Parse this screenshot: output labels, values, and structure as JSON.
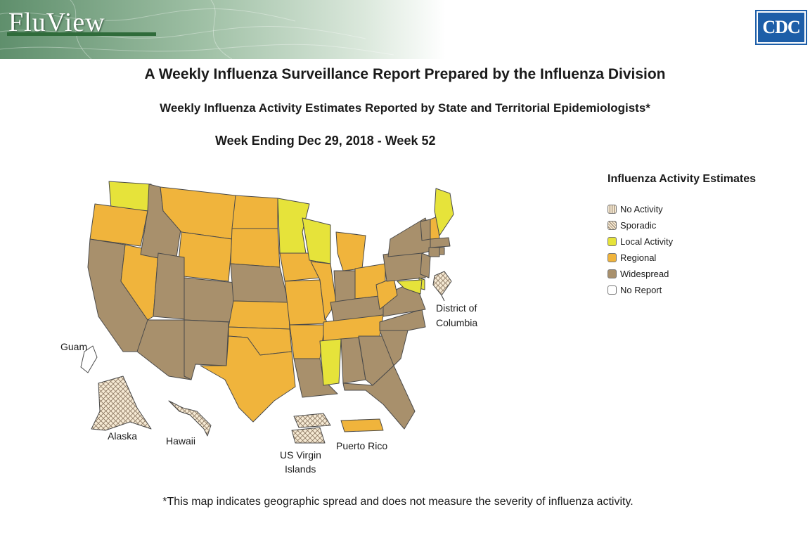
{
  "header": {
    "logo": "FluView",
    "agency_logo": "CDC",
    "title": "A Weekly Influenza Surveillance Report Prepared by the Influenza Division",
    "subtitle": "Weekly Influenza Activity Estimates Reported by State and Territorial Epidemiologists*",
    "week": "Week Ending Dec 29, 2018 - Week 52"
  },
  "legend": {
    "title": "Influenza Activity Estimates",
    "items": [
      {
        "label": "No Activity",
        "color": "#f6ead4",
        "pattern": "vertical-lines"
      },
      {
        "label": "Sporadic",
        "color": "#f6ead4",
        "pattern": "crosshatch"
      },
      {
        "label": "Local Activity",
        "color": "#e6e33a"
      },
      {
        "label": "Regional",
        "color": "#f0b43c"
      },
      {
        "label": "Widespread",
        "color": "#a8906c"
      },
      {
        "label": "No Report",
        "color": "#ffffff"
      }
    ]
  },
  "territory_labels": {
    "dc": [
      "District of",
      "Columbia"
    ],
    "guam": "Guam",
    "alaska": "Alaska",
    "hawaii": "Hawaii",
    "usvi": [
      "US Virgin",
      "Islands"
    ],
    "puerto_rico": "Puerto Rico"
  },
  "footnote": "*This map indicates geographic spread and does not measure the severity of influenza activity.",
  "map_data": {
    "WA": "Local Activity",
    "OR": "Regional",
    "CA": "Widespread",
    "NV": "Regional",
    "ID": "Widespread",
    "MT": "Regional",
    "WY": "Regional",
    "UT": "Widespread",
    "AZ": "Widespread",
    "CO": "Widespread",
    "NM": "Widespread",
    "ND": "Regional",
    "SD": "Regional",
    "NE": "Widespread",
    "KS": "Regional",
    "OK": "Regional",
    "TX": "Regional",
    "MN": "Local Activity",
    "IA": "Regional",
    "MO": "Regional",
    "AR": "Regional",
    "LA": "Widespread",
    "WI": "Local Activity",
    "IL": "Regional",
    "MI": "Regional",
    "IN": "Widespread",
    "OH": "Regional",
    "KY": "Widespread",
    "TN": "Regional",
    "MS": "Local Activity",
    "AL": "Widespread",
    "GA": "Widespread",
    "FL": "Widespread",
    "SC": "Widespread",
    "NC": "Widespread",
    "VA": "Widespread",
    "WV": "Regional",
    "PA": "Widespread",
    "NY": "Widespread",
    "VT": "Widespread",
    "NH": "Regional",
    "ME": "Local Activity",
    "MA": "Widespread",
    "CT": "Widespread",
    "RI": "Widespread",
    "NJ": "Widespread",
    "DE": "Local Activity",
    "MD": "Local Activity",
    "DC": "Sporadic",
    "AK": "Sporadic",
    "HI": "Sporadic",
    "PR": "Regional",
    "VI": "Sporadic",
    "GU": "No Report"
  }
}
